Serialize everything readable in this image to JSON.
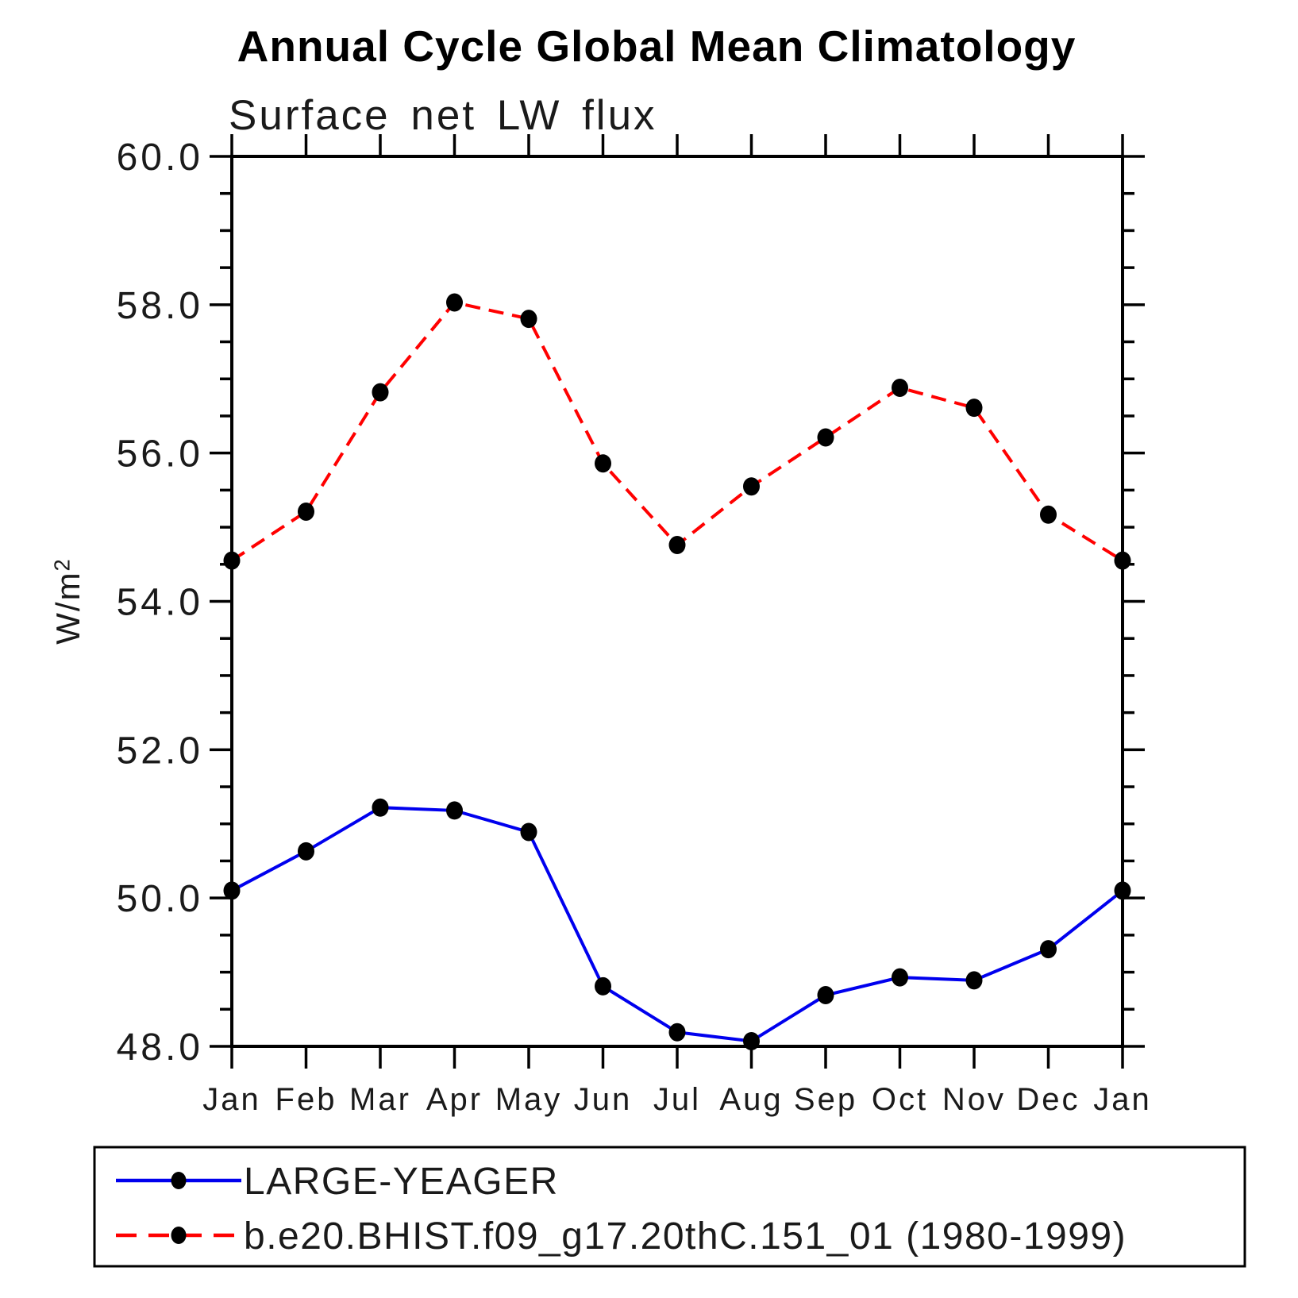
{
  "window": {
    "background": "#ffffff"
  },
  "chart_data": {
    "type": "line",
    "title": "Annual Cycle Global Mean Climatology",
    "subtitle": "Surface net LW flux",
    "ylabel_base": "W/m",
    "ylabel_exponent": "2",
    "categories": [
      "Jan",
      "Feb",
      "Mar",
      "Apr",
      "May",
      "Jun",
      "Jul",
      "Aug",
      "Sep",
      "Oct",
      "Nov",
      "Dec",
      "Jan"
    ],
    "ylim": [
      48.0,
      60.0
    ],
    "ytick_major": [
      48,
      50,
      52,
      54,
      56,
      58,
      60
    ],
    "ytick_labels": [
      "48.0",
      "50.0",
      "52.0",
      "54.0",
      "56.0",
      "58.0",
      "60.0"
    ],
    "ytick_minor_step": 0.5,
    "grid": false,
    "legend_position": "bottom",
    "axis_color": "#000000",
    "marker_color": "#000000",
    "series": [
      {
        "name": "LARGE-YEAGER",
        "color": "#0000ee",
        "line_style": "solid",
        "values": [
          50.1,
          50.63,
          51.22,
          51.18,
          50.89,
          48.81,
          48.19,
          48.07,
          48.69,
          48.93,
          48.89,
          49.31,
          50.1
        ]
      },
      {
        "name": "b.e20.BHIST.f09_g17.20thC.151_01 (1980-1999)",
        "color": "#ff0000",
        "line_style": "dashed",
        "values": [
          54.55,
          55.21,
          56.82,
          58.03,
          57.81,
          55.86,
          54.76,
          55.55,
          56.21,
          56.88,
          56.61,
          55.17,
          54.55
        ]
      }
    ]
  }
}
